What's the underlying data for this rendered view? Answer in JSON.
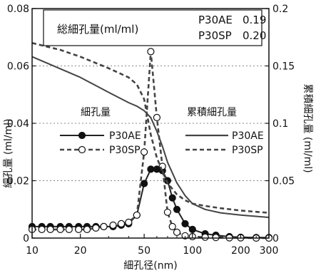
{
  "chart_data": {
    "type": "line",
    "xlabel": "細孔径(nm)",
    "ylabel_left": "細孔量 (ml/ml)",
    "ylabel_right": "累積細孔量 (ml/ml)",
    "x_scale": "log",
    "xlim": [
      10,
      300
    ],
    "x_ticks": [
      10,
      20,
      50,
      100,
      200,
      300
    ],
    "x_tick_labels": [
      "10",
      "20",
      "50",
      "100",
      "200",
      "300"
    ],
    "ylim_left": [
      0,
      0.08
    ],
    "y_ticks_left": [
      0,
      0.02,
      0.04,
      0.06,
      0.08
    ],
    "y_tick_labels_left": [
      "0",
      "0.02",
      "0.04",
      "0.06",
      "0.08"
    ],
    "ylim_right": [
      0,
      0.2
    ],
    "y_ticks_right": [
      0,
      0.05,
      0.1,
      0.15,
      0.2
    ],
    "y_tick_labels_right": [
      "0",
      "0.05",
      "0.1",
      "0.15",
      "0.2"
    ],
    "grid": "horizontal dotted",
    "info_box": {
      "title": "総細孔量(ml/ml)",
      "rows": [
        {
          "name": "P30AE",
          "value": "0.19"
        },
        {
          "name": "P30SP",
          "value": "0.20"
        }
      ]
    },
    "legend_left": {
      "heading": "細孔量",
      "entries": [
        "P30AE",
        "P30SP"
      ]
    },
    "legend_right": {
      "heading": "累積細孔量",
      "entries": [
        "P30AE",
        "P30SP"
      ]
    },
    "series": [
      {
        "name": "P30AE",
        "group": "細孔量",
        "axis": "left",
        "style": "solid-filled-marker",
        "x": [
          10,
          11.5,
          13,
          15,
          17,
          19.5,
          22,
          25,
          28,
          32,
          36,
          40,
          45,
          50,
          55,
          60,
          65,
          70,
          75,
          80,
          90,
          100,
          120,
          140,
          170,
          200,
          250,
          300
        ],
        "values": [
          0.004,
          0.004,
          0.004,
          0.004,
          0.004,
          0.004,
          0.004,
          0.004,
          0.004,
          0.004,
          0.0045,
          0.005,
          0.008,
          0.019,
          0.024,
          0.024,
          0.0235,
          0.02,
          0.014,
          0.01,
          0.005,
          0.003,
          0.0015,
          0.001,
          0.0005,
          0.0003,
          0.0002,
          0.0002
        ]
      },
      {
        "name": "P30SP",
        "group": "細孔量",
        "axis": "left",
        "style": "dashed-open-marker",
        "x": [
          10,
          11.5,
          13,
          15,
          17,
          19.5,
          22,
          25,
          28,
          32,
          36,
          40,
          45,
          50,
          55,
          60,
          65,
          70,
          75,
          80,
          90,
          100,
          120,
          140,
          170,
          200,
          250,
          300
        ],
        "values": [
          0.003,
          0.003,
          0.003,
          0.003,
          0.003,
          0.003,
          0.003,
          0.0035,
          0.004,
          0.0045,
          0.005,
          0.0055,
          0.008,
          0.03,
          0.065,
          0.042,
          0.025,
          0.009,
          0.004,
          0.002,
          0.0008,
          0.0005,
          0.0003,
          0.0002,
          0.0001,
          0.0001,
          0.0,
          0.0
        ]
      },
      {
        "name": "P30AE",
        "group": "累積細孔量",
        "axis": "right",
        "style": "solid",
        "x": [
          10,
          20,
          30,
          40,
          45,
          50,
          55,
          60,
          65,
          70,
          80,
          90,
          100,
          120,
          150,
          200,
          300
        ],
        "values": [
          0.158,
          0.14,
          0.127,
          0.118,
          0.115,
          0.111,
          0.105,
          0.093,
          0.08,
          0.066,
          0.048,
          0.037,
          0.03,
          0.025,
          0.022,
          0.02,
          0.018
        ]
      },
      {
        "name": "P30SP",
        "group": "累積細孔量",
        "axis": "right",
        "style": "dashed",
        "x": [
          10,
          15,
          20,
          30,
          40,
          45,
          50,
          55,
          60,
          65,
          70,
          80,
          90,
          100,
          120,
          150,
          200,
          300
        ],
        "values": [
          0.17,
          0.164,
          0.158,
          0.148,
          0.14,
          0.134,
          0.121,
          0.09,
          0.07,
          0.058,
          0.048,
          0.038,
          0.033,
          0.03,
          0.028,
          0.026,
          0.024,
          0.022
        ]
      }
    ]
  }
}
